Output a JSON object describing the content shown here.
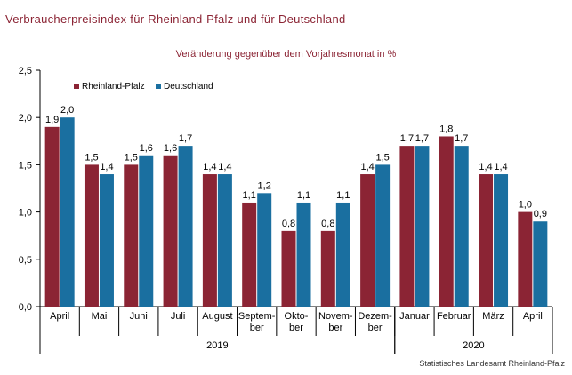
{
  "chart_data": {
    "type": "bar",
    "title": "Verbraucherpreisindex für Rheinland-Pfalz und für Deutschland",
    "subtitle": "Veränderung gegenüber dem Vorjahresmonat in %",
    "source": "Statistisches Landesamt Rheinland-Pfalz",
    "ylim": [
      0,
      2.5
    ],
    "yticks": [
      "0,0",
      "0,5",
      "1,0",
      "1,5",
      "2,0",
      "2,5"
    ],
    "ytick_values": [
      0,
      0.5,
      1.0,
      1.5,
      2.0,
      2.5
    ],
    "categories": [
      "April",
      "Mai",
      "Juni",
      "Juli",
      "August",
      "Septem-|ber",
      "Okto-|ber",
      "Novem-|ber",
      "Dezem-|ber",
      "Januar",
      "Februar",
      "März",
      "April"
    ],
    "years": [
      {
        "label": "2019",
        "start": 0,
        "end": 8
      },
      {
        "label": "2020",
        "start": 9,
        "end": 12
      }
    ],
    "series": [
      {
        "name": "Rheinland-Pfalz",
        "color": "#8b2434",
        "values": [
          1.9,
          1.5,
          1.5,
          1.6,
          1.4,
          1.1,
          0.8,
          0.8,
          1.4,
          1.7,
          1.8,
          1.4,
          1.0
        ],
        "labels": [
          "1,9",
          "1,5",
          "1,5",
          "1,6",
          "1,4",
          "1,1",
          "0,8",
          "0,8",
          "1,4",
          "1,7",
          "1,8",
          "1,4",
          "1,0"
        ]
      },
      {
        "name": "Deutschland",
        "color": "#1a6fa0",
        "values": [
          2.0,
          1.4,
          1.6,
          1.7,
          1.4,
          1.2,
          1.1,
          1.1,
          1.5,
          1.7,
          1.7,
          1.4,
          0.9
        ],
        "labels": [
          "2,0",
          "1,4",
          "1,6",
          "1,7",
          "1,4",
          "1,2",
          "1,1",
          "1,1",
          "1,5",
          "1,7",
          "1,7",
          "1,4",
          "0,9"
        ]
      }
    ],
    "legend_position": "top-left",
    "grid": false
  }
}
